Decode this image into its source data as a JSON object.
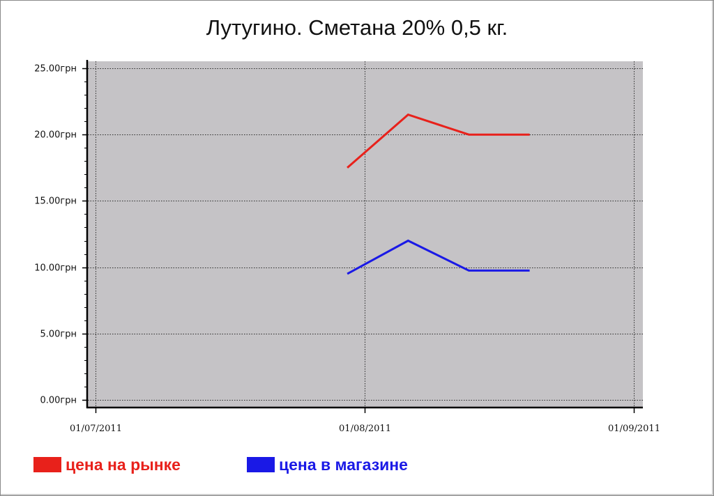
{
  "chart_data": {
    "type": "line",
    "title": "Лутугино. Сметана 20%  0,5 кг.",
    "xlabel": "",
    "ylabel": "",
    "x_axis": {
      "type": "date",
      "range": [
        "2011-07-01",
        "2011-09-01"
      ],
      "ticks": [
        "2011-07-01",
        "2011-08-01",
        "2011-09-01"
      ],
      "tick_labels": [
        "01/07/2011",
        "01/08/2011",
        "01/09/2011"
      ]
    },
    "y_axis": {
      "range": [
        0,
        25
      ],
      "ticks": [
        0,
        5,
        10,
        15,
        20,
        25
      ],
      "tick_labels": [
        "0.00грн",
        "5.00грн",
        "10.00грн",
        "15.00грн",
        "20.00грн",
        "25.00грн"
      ]
    },
    "grid": true,
    "plot_background": "#c5c3c6",
    "legend_position": "bottom-left",
    "series": [
      {
        "name": "цена на рынке",
        "color": "#e8211b",
        "points": [
          {
            "x": "2011-07-30",
            "y": 17.5
          },
          {
            "x": "2011-08-06",
            "y": 21.5
          },
          {
            "x": "2011-08-13",
            "y": 20.0
          },
          {
            "x": "2011-08-20",
            "y": 20.0
          }
        ]
      },
      {
        "name": "цена в магазине",
        "color": "#1a19e6",
        "points": [
          {
            "x": "2011-07-30",
            "y": 9.5
          },
          {
            "x": "2011-08-06",
            "y": 12.0
          },
          {
            "x": "2011-08-13",
            "y": 9.75
          },
          {
            "x": "2011-08-20",
            "y": 9.75
          }
        ]
      }
    ]
  }
}
